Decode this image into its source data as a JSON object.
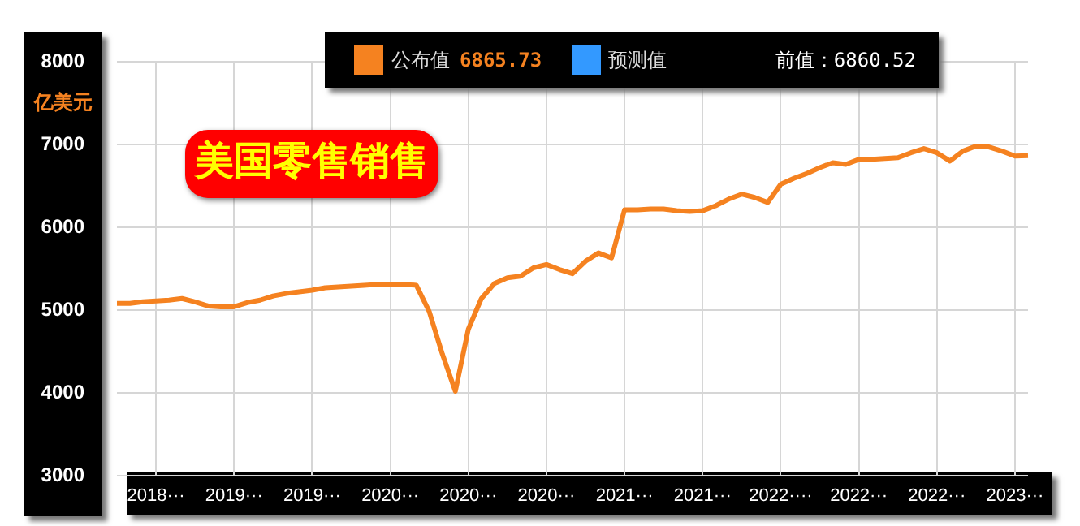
{
  "chart_data": {
    "type": "line",
    "title": "美国零售销售",
    "ylabel": "亿美元",
    "categories": [
      null,
      null,
      null,
      "2018···",
      null,
      null,
      null,
      null,
      null,
      "2019···",
      null,
      null,
      null,
      null,
      null,
      "2019···",
      null,
      null,
      null,
      null,
      null,
      "2020···",
      null,
      null,
      null,
      null,
      null,
      "2020···",
      null,
      null,
      null,
      null,
      null,
      "2020···",
      null,
      null,
      null,
      null,
      null,
      "2021···",
      null,
      null,
      null,
      null,
      null,
      "2021···",
      null,
      null,
      null,
      null,
      null,
      "2022····",
      null,
      null,
      null,
      null,
      null,
      "2022···",
      null,
      null,
      null,
      null,
      null,
      "2022···",
      null,
      null,
      null,
      null,
      null,
      "2023···",
      null
    ],
    "series": [
      {
        "name": "公布值",
        "color": "#f58220",
        "values": [
          5080,
          5080,
          5100,
          5110,
          5120,
          5140,
          5100,
          5050,
          5040,
          5040,
          5090,
          5120,
          5170,
          5200,
          5220,
          5240,
          5270,
          5280,
          5290,
          5300,
          5310,
          5310,
          5310,
          5300,
          4980,
          4470,
          4020,
          4770,
          5140,
          5320,
          5390,
          5410,
          5510,
          5550,
          5490,
          5440,
          5590,
          5690,
          5630,
          6210,
          6210,
          6220,
          6220,
          6200,
          6190,
          6200,
          6260,
          6340,
          6400,
          6360,
          6300,
          6520,
          6590,
          6650,
          6720,
          6780,
          6760,
          6820,
          6820,
          6830,
          6840,
          6900,
          6950,
          6900,
          6800,
          6920,
          6980,
          6970,
          6920,
          6860.52,
          6865.73
        ]
      },
      {
        "name": "预测值",
        "color": "#3399ff",
        "values": [
          null,
          null,
          null,
          null,
          null,
          null,
          null,
          null,
          null,
          null,
          null,
          null,
          null,
          null,
          null,
          null,
          null,
          null,
          null,
          null,
          null,
          null,
          null,
          null,
          null,
          null,
          null,
          null,
          null,
          null,
          null,
          null,
          null,
          null,
          null,
          null,
          null,
          null,
          null,
          null,
          null,
          null,
          null,
          null,
          null,
          null,
          null,
          null,
          null,
          null,
          null,
          null,
          null,
          null,
          null,
          null,
          null,
          null,
          null,
          null,
          null,
          null,
          null,
          null,
          null,
          null,
          null,
          null,
          null,
          null,
          null
        ]
      }
    ],
    "ylim": [
      3000,
      8000
    ],
    "yticks": [
      3000,
      4000,
      5000,
      6000,
      7000,
      8000
    ],
    "grid": true,
    "legend": "top",
    "marker": "none",
    "annotations": [
      "6865.73",
      "前值：6860.52"
    ]
  }
}
